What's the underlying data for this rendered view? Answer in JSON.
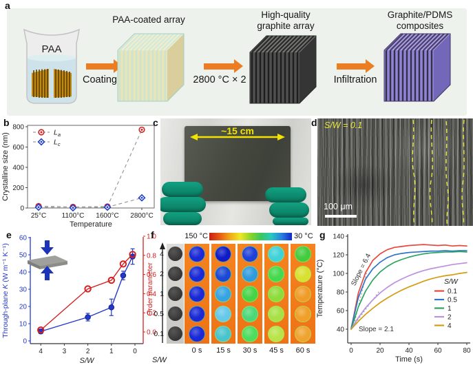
{
  "panel_a": {
    "label": "a",
    "beaker_label": "PAA",
    "arrow1_label": "Coating",
    "arrow2_label": "2800 °C × 2 h",
    "arrow3_label": "Infiltration",
    "title1": "PAA-coated array",
    "title2_line1": "High-quality",
    "title2_line2": "graphite  array",
    "title3_line1": "Graphite/PDMS",
    "title3_line2": "composites",
    "cubes": [
      {
        "name": "paa-coated-array",
        "front": "#ece4b2",
        "gap": "#c6e4da",
        "top": "#f5efca",
        "top_gap": "#d2e9dd",
        "side": "#d9ce9c",
        "outline": "#a4cfc6"
      },
      {
        "name": "graphite-array",
        "front": "#4f4f4f",
        "gap": "#1e1e1e",
        "top": "#7b7b78",
        "top_gap": "#2c2c2c",
        "side": "#353535",
        "outline": "#2a2a2a"
      },
      {
        "name": "graphite-pdms-composite",
        "front": "#9184d2",
        "gap": "#352f4e",
        "top": "#b1a5e3",
        "top_gap": "#4c4274",
        "side": "#7367ba",
        "outline": "#3c3560"
      }
    ]
  },
  "panel_b": {
    "label": "b"
  },
  "panel_c": {
    "label": "c",
    "dimension_label": "~15 cm"
  },
  "panel_d": {
    "label": "d",
    "sw_label": "S/W = 0.1",
    "scalebar_label": "100 μm"
  },
  "panel_e": {
    "label": "e"
  },
  "panel_f": {
    "label": "f",
    "colorbar_left_label": "150 °C",
    "colorbar_right_label": "30 °C",
    "colorbar_colors": [
      "#c81e14",
      "#e85a10",
      "#f0a818",
      "#f0e828",
      "#8cd428",
      "#38c85c",
      "#28c8c0",
      "#2880e0",
      "#1428c8"
    ],
    "row_labels": [
      "4",
      "2",
      "1",
      "0.5",
      "0.1"
    ],
    "axis_label": "S/W",
    "time_labels": [
      "0 s",
      "15 s",
      "30 s",
      "45 s",
      "60 s"
    ],
    "photo_disk_color": "#343434",
    "disk_colors": [
      [
        "#1929d6",
        "#0f1cc6",
        "#1f41d8",
        "#3fd2d8",
        "#44cc40"
      ],
      [
        "#1929d6",
        "#1b49d4",
        "#2f9bdc",
        "#46d84e",
        "#d8e030"
      ],
      [
        "#1929d6",
        "#37a4e2",
        "#46d446",
        "#8edc3c",
        "#f09c28"
      ],
      [
        "#1929d6",
        "#66c8ea",
        "#4cd878",
        "#a8e046",
        "#f0a028"
      ],
      [
        "#1929d6",
        "#4ac4cc",
        "#4cdc5e",
        "#b8e44a",
        "#f0a430"
      ]
    ]
  },
  "panel_g": {
    "label": "g"
  },
  "chart_data": [
    {
      "id": "b",
      "type": "scatter",
      "xlabel": "Temperature",
      "ylabel": "Crystalline size (nm)",
      "categories": [
        "25°C",
        "1100°C",
        "1600°C",
        "2800°C"
      ],
      "ylim": [
        0,
        800
      ],
      "yticks": [
        0,
        200,
        400,
        600,
        800
      ],
      "connector_color": "#9a9a9a",
      "series": [
        {
          "label_main": "L",
          "label_sub": "a",
          "marker": "circle",
          "color": "#d42020",
          "values": [
            18,
            10,
            14,
            770
          ]
        },
        {
          "label_main": "L",
          "label_sub": "c",
          "marker": "diamond",
          "color": "#2040d0",
          "values": [
            8,
            2,
            8,
            100
          ]
        }
      ]
    },
    {
      "id": "e",
      "type": "dual-axis-line",
      "xlabel": "S/W",
      "xticks": [
        4,
        3,
        2,
        1,
        0
      ],
      "left": {
        "label_pre": "Through-plane ",
        "label_sym": "K",
        "label_post": " (W m⁻¹ K⁻¹)",
        "color": "#2238c8",
        "lim": [
          0,
          60
        ],
        "ticks": [
          0,
          10,
          20,
          30,
          40,
          50,
          60
        ]
      },
      "right": {
        "label": "Order parameter",
        "color": "#d42020",
        "lim": [
          0,
          1
        ],
        "ticks": [
          "0.0",
          "0.2",
          "0.4",
          "0.6",
          "0.8",
          "1.0"
        ]
      },
      "series": [
        {
          "name": "through-plane-k",
          "axis": "left",
          "color": "#2238c8",
          "x": [
            4,
            2,
            1,
            0.5,
            0.1
          ],
          "y": [
            5.5,
            13.8,
            19.5,
            38,
            49
          ],
          "err": [
            1.2,
            2.2,
            4.8,
            2.5,
            4.5
          ]
        },
        {
          "name": "order-parameter",
          "axis": "right",
          "color": "#d42020",
          "x": [
            4,
            2,
            1,
            0.5,
            0.1
          ],
          "y": [
            0.02,
            0.45,
            0.54,
            0.71,
            0.81
          ],
          "err": [
            0.02,
            0.02,
            0.02,
            0.02,
            0.03
          ]
        }
      ]
    },
    {
      "id": "g",
      "type": "line",
      "xlabel": "Time (s)",
      "ylabel": "Temperature (°C)",
      "xticks": [
        0,
        20,
        40,
        60,
        80
      ],
      "yticks": [
        40,
        60,
        80,
        100,
        120,
        140
      ],
      "legend_title": "S/W",
      "t": [
        0,
        5,
        10,
        15,
        20,
        25,
        30,
        35,
        40,
        45,
        50,
        55,
        60,
        65,
        70,
        75,
        80
      ],
      "series": [
        {
          "name": "0.1",
          "color": "#e8463a",
          "values": [
            40,
            79,
            101,
            114,
            121,
            125.5,
            128,
            129,
            130,
            130.5,
            131,
            130.5,
            130,
            130.5,
            129.5,
            130,
            129.5
          ]
        },
        {
          "name": "0.5",
          "color": "#2e74c8",
          "values": [
            41,
            74,
            94,
            105,
            112,
            117,
            120,
            121.5,
            122.5,
            123,
            123.5,
            124,
            124,
            124.5,
            124,
            124.5,
            124.5
          ]
        },
        {
          "name": "1",
          "color": "#2aa45e",
          "values": [
            40,
            64,
            81,
            93,
            101.5,
            107.5,
            112,
            115,
            117.5,
            119.5,
            121,
            122,
            122.5,
            123,
            123,
            123.5,
            123
          ]
        },
        {
          "name": "2",
          "color": "#bd8fe0",
          "values": [
            40,
            52.5,
            63,
            71.5,
            79,
            85,
            90,
            94,
            97.5,
            100.5,
            103,
            105,
            106.5,
            108,
            109.5,
            110.5,
            111.5
          ]
        },
        {
          "name": "4",
          "color": "#d49c10",
          "values": [
            40,
            48.5,
            56,
            62.5,
            68.5,
            73.5,
            78,
            82,
            85.5,
            88.5,
            91.5,
            94,
            96,
            97.5,
            98.5,
            100,
            101
          ]
        }
      ],
      "annotations": [
        {
          "text": "Slope = 6.4",
          "rotation": -63
        },
        {
          "text": "Slope = 2.1",
          "rotation": 0
        }
      ],
      "guide_lines": [
        {
          "x1": 2,
          "y1": 45,
          "x2": 11.5,
          "y2": 106
        },
        {
          "x1": 1.5,
          "y1": 43.5,
          "x2": 20,
          "y2": 82
        }
      ]
    }
  ]
}
